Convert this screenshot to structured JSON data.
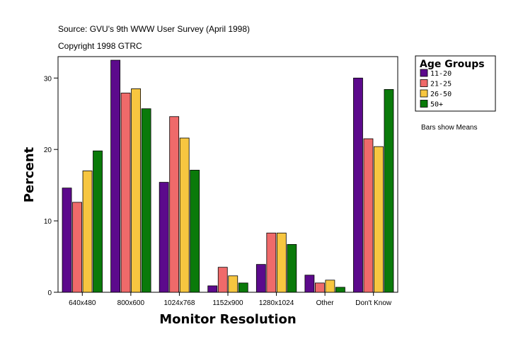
{
  "chart_data": {
    "type": "bar",
    "source": "Source: GVU's 9th WWW User Survey (April 1998)",
    "copyright": "Copyright 1998 GTRC",
    "xlabel": "Monitor Resolution",
    "ylabel": "Percent",
    "ylim": [
      0,
      33
    ],
    "yticks": [
      0,
      10,
      20,
      30
    ],
    "categories": [
      "640x480",
      "800x600",
      "1024x768",
      "1152x900",
      "1280x1024",
      "Other",
      "Don't Know"
    ],
    "legend_title": "Age Groups",
    "note": "Bars show Means",
    "series": [
      {
        "name": "11-20",
        "color": "#5c0a8c",
        "values": [
          14.6,
          32.5,
          15.4,
          0.9,
          3.9,
          2.4,
          30.0
        ]
      },
      {
        "name": "21-25",
        "color": "#ef6a6a",
        "values": [
          12.6,
          27.9,
          24.6,
          3.5,
          8.3,
          1.3,
          21.5
        ]
      },
      {
        "name": "26-50",
        "color": "#f7c640",
        "values": [
          17.0,
          28.5,
          21.6,
          2.3,
          8.3,
          1.7,
          20.4
        ]
      },
      {
        "name": "50+",
        "color": "#0a7a0a",
        "values": [
          19.8,
          25.7,
          17.1,
          1.3,
          6.7,
          0.7,
          28.4
        ]
      }
    ]
  }
}
